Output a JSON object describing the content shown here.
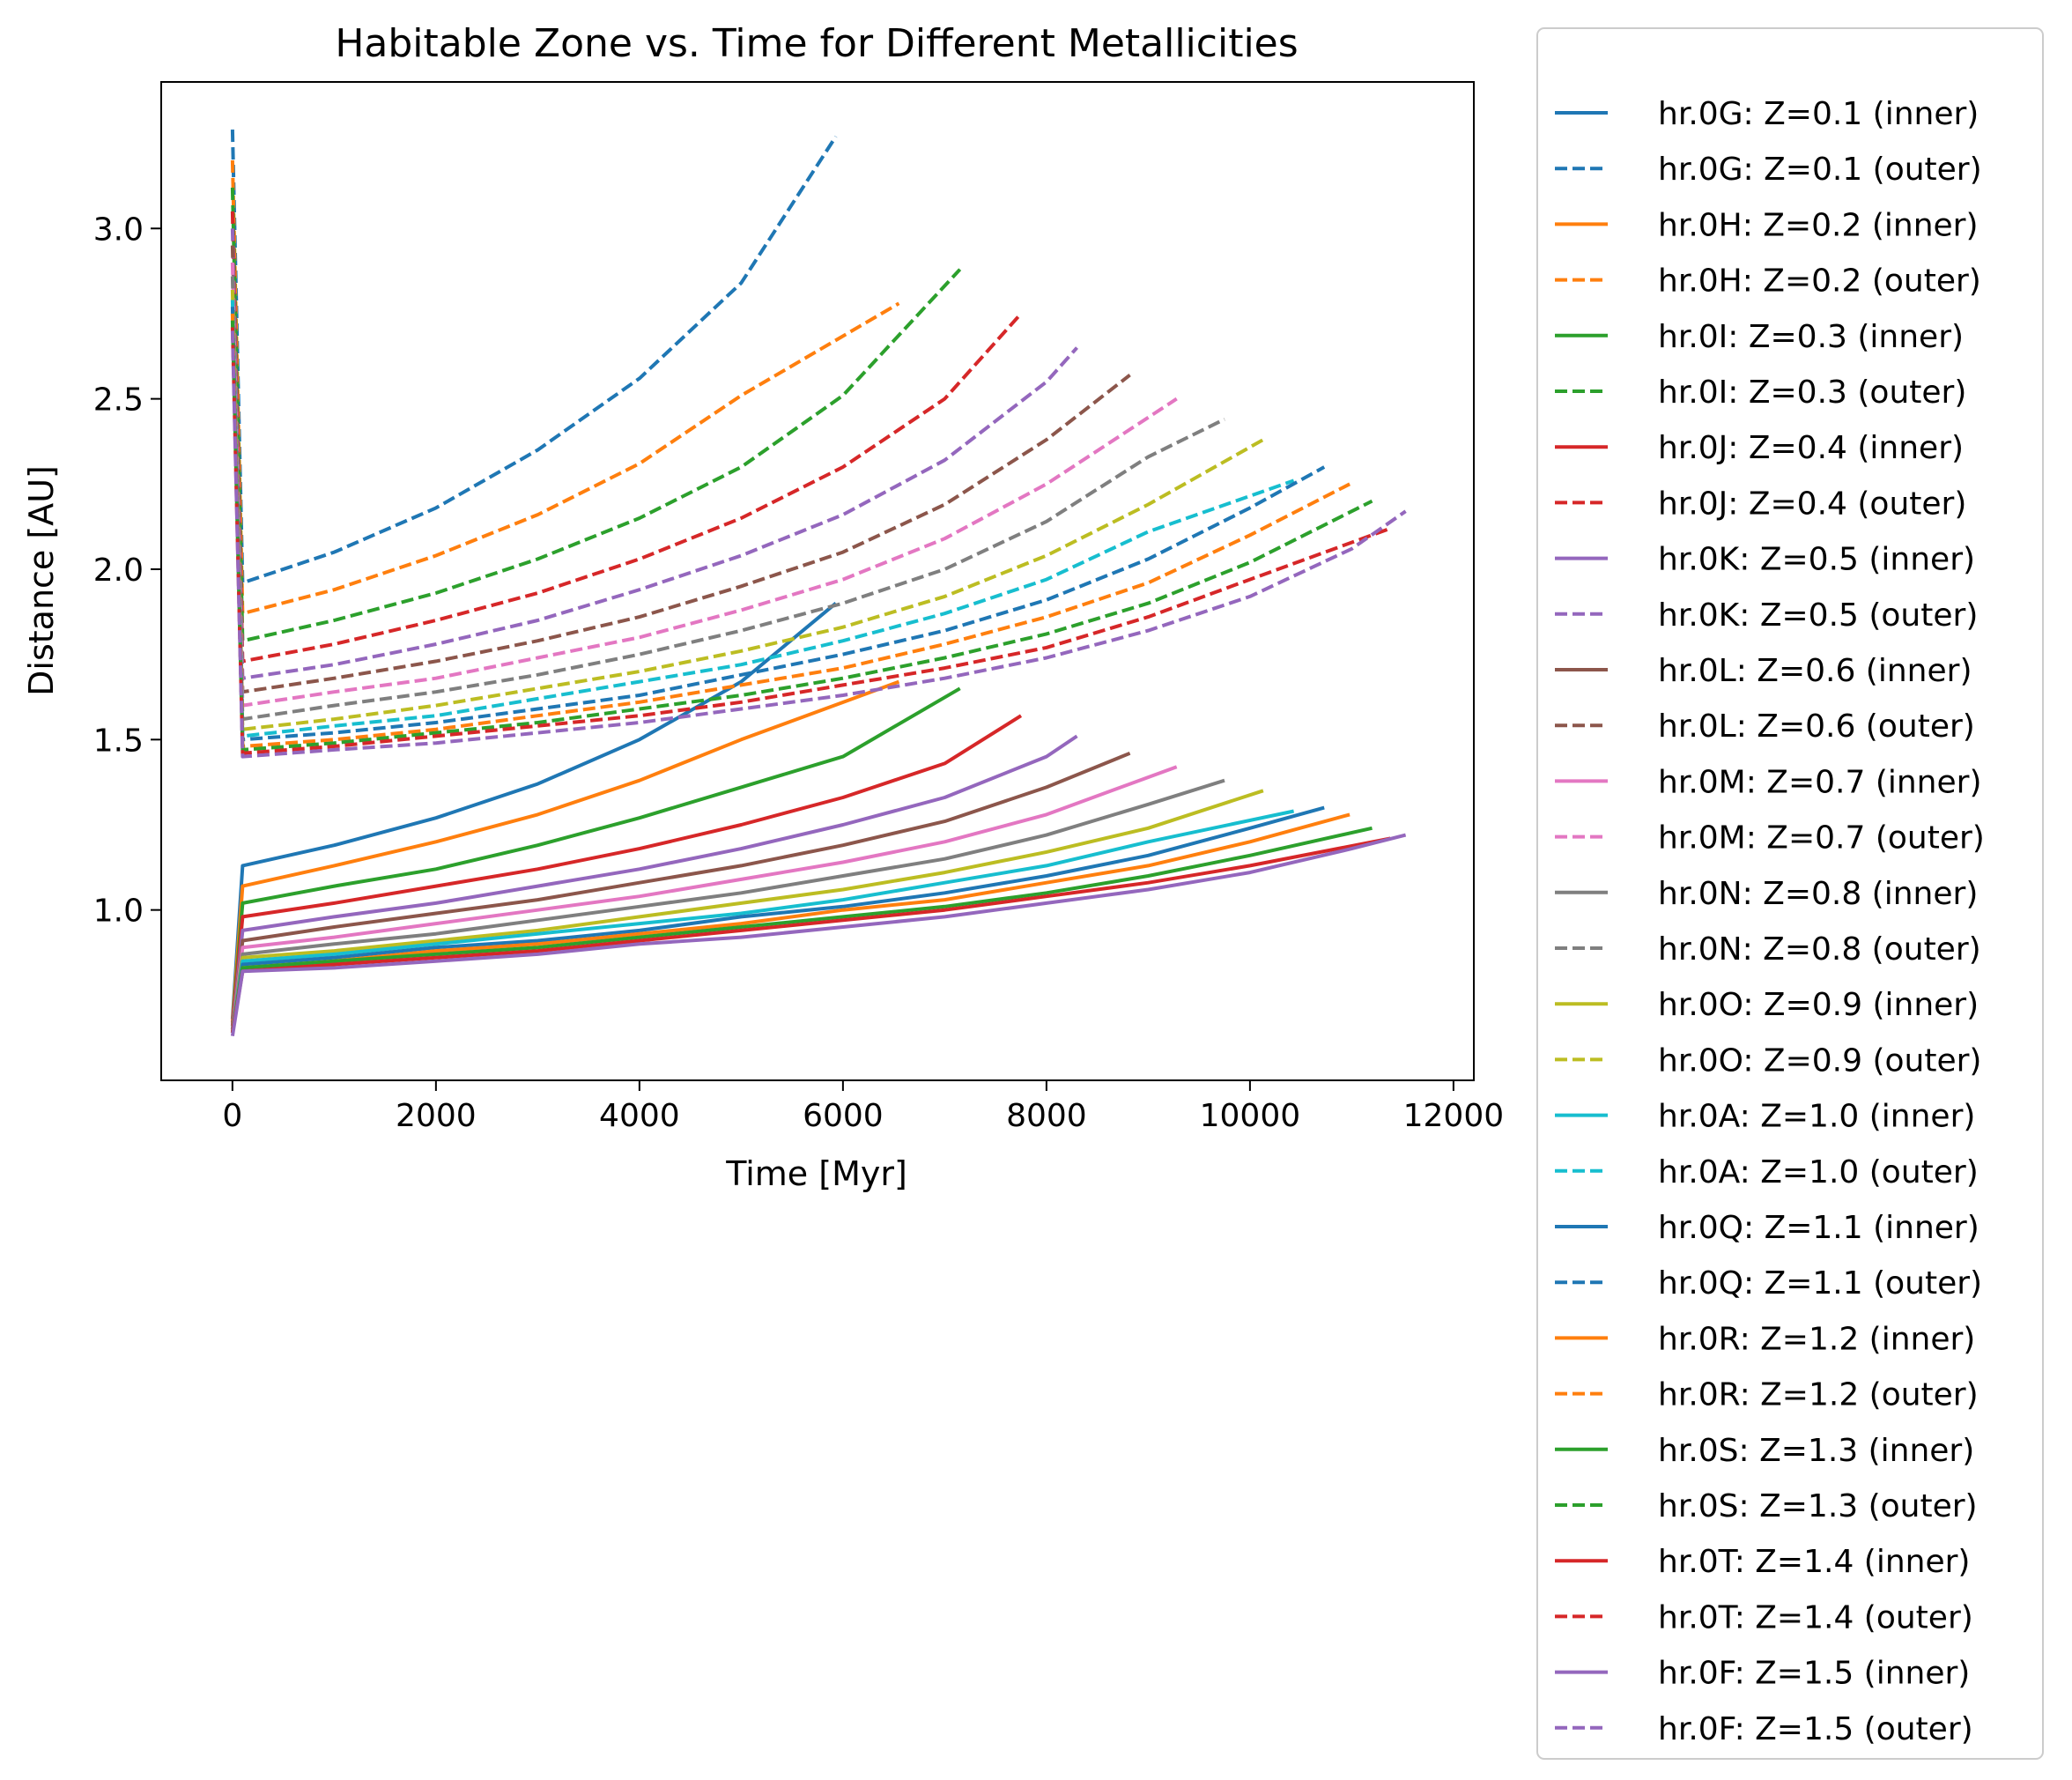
{
  "chart_data": {
    "type": "line",
    "title": "Habitable Zone vs. Time for Different Metallicities",
    "xlabel": "Time [Myr]",
    "ylabel": "Distance [AU]",
    "xlim": [
      -700,
      12200
    ],
    "ylim": [
      0.5,
      3.43
    ],
    "xticks": [
      0,
      2000,
      4000,
      6000,
      8000,
      10000,
      12000
    ],
    "xtick_labels": [
      "0",
      "2000",
      "4000",
      "6000",
      "8000",
      "10000",
      "12000"
    ],
    "yticks": [
      1.0,
      1.5,
      2.0,
      2.5,
      3.0
    ],
    "ytick_labels": [
      "1.0",
      "1.5",
      "2.0",
      "2.5",
      "3.0"
    ],
    "grid": false,
    "legend_position": "outside-right",
    "x_sample": [
      0,
      100,
      1000,
      2000,
      3000,
      4000,
      5000,
      6000,
      7000,
      8000,
      9000,
      10000,
      11000,
      11500
    ],
    "series": [
      {
        "name": "hr.0G: Z=0.1 (inner)",
        "color": "#1f77b4",
        "style": "solid",
        "end_x": 5930,
        "values": [
          0.68,
          1.13,
          1.19,
          1.27,
          1.37,
          1.5,
          1.67,
          1.9
        ]
      },
      {
        "name": "hr.0G: Z=0.1 (outer)",
        "color": "#1f77b4",
        "style": "dashed",
        "end_x": 5930,
        "values": [
          3.29,
          1.96,
          2.05,
          2.18,
          2.35,
          2.56,
          2.84,
          3.27
        ]
      },
      {
        "name": "hr.0H: Z=0.2 (inner)",
        "color": "#ff7f0e",
        "style": "solid",
        "end_x": 6550,
        "values": [
          0.67,
          1.07,
          1.13,
          1.2,
          1.28,
          1.38,
          1.5,
          1.67
        ]
      },
      {
        "name": "hr.0H: Z=0.2 (outer)",
        "color": "#ff7f0e",
        "style": "dashed",
        "end_x": 6550,
        "values": [
          3.2,
          1.87,
          1.94,
          2.04,
          2.16,
          2.31,
          2.51,
          2.78
        ]
      },
      {
        "name": "hr.0I: Z=0.3 (inner)",
        "color": "#2ca02c",
        "style": "solid",
        "end_x": 7150,
        "values": [
          0.66,
          1.02,
          1.07,
          1.12,
          1.19,
          1.27,
          1.36,
          1.45,
          1.65
        ]
      },
      {
        "name": "hr.0I: Z=0.3 (outer)",
        "color": "#2ca02c",
        "style": "dashed",
        "end_x": 7150,
        "values": [
          3.12,
          1.79,
          1.85,
          1.93,
          2.03,
          2.15,
          2.3,
          2.51,
          2.88
        ]
      },
      {
        "name": "hr.0J: Z=0.4 (inner)",
        "color": "#d62728",
        "style": "solid",
        "end_x": 7750,
        "values": [
          0.66,
          0.98,
          1.02,
          1.07,
          1.12,
          1.18,
          1.25,
          1.33,
          1.43,
          1.57
        ]
      },
      {
        "name": "hr.0J: Z=0.4 (outer)",
        "color": "#d62728",
        "style": "dashed",
        "end_x": 7750,
        "values": [
          3.05,
          1.73,
          1.78,
          1.85,
          1.93,
          2.03,
          2.15,
          2.3,
          2.5,
          2.75
        ]
      },
      {
        "name": "hr.0K: Z=0.5 (inner)",
        "color": "#9467bd",
        "style": "solid",
        "end_x": 8300,
        "values": [
          0.65,
          0.94,
          0.98,
          1.02,
          1.07,
          1.12,
          1.18,
          1.25,
          1.33,
          1.45,
          1.51
        ]
      },
      {
        "name": "hr.0K: Z=0.5 (outer)",
        "color": "#9467bd",
        "style": "dashed",
        "end_x": 8300,
        "values": [
          3.0,
          1.68,
          1.72,
          1.78,
          1.85,
          1.94,
          2.04,
          2.16,
          2.32,
          2.55,
          2.65
        ]
      },
      {
        "name": "hr.0L: Z=0.6 (inner)",
        "color": "#8c564b",
        "style": "solid",
        "end_x": 8820,
        "values": [
          0.65,
          0.91,
          0.95,
          0.99,
          1.03,
          1.08,
          1.13,
          1.19,
          1.26,
          1.36,
          1.46
        ]
      },
      {
        "name": "hr.0L: Z=0.6 (outer)",
        "color": "#8c564b",
        "style": "dashed",
        "end_x": 8820,
        "values": [
          2.95,
          1.64,
          1.68,
          1.73,
          1.79,
          1.86,
          1.95,
          2.05,
          2.19,
          2.38,
          2.57
        ]
      },
      {
        "name": "hr.0M: Z=0.7 (inner)",
        "color": "#e377c2",
        "style": "solid",
        "end_x": 9280,
        "values": [
          0.65,
          0.89,
          0.92,
          0.96,
          1.0,
          1.04,
          1.09,
          1.14,
          1.2,
          1.28,
          1.42
        ]
      },
      {
        "name": "hr.0M: Z=0.7 (outer)",
        "color": "#e377c2",
        "style": "dashed",
        "end_x": 9280,
        "values": [
          2.9,
          1.6,
          1.64,
          1.68,
          1.74,
          1.8,
          1.88,
          1.97,
          2.09,
          2.25,
          2.5
        ]
      },
      {
        "name": "hr.0N: Z=0.8 (inner)",
        "color": "#7f7f7f",
        "style": "solid",
        "end_x": 9750,
        "values": [
          0.65,
          0.87,
          0.9,
          0.93,
          0.97,
          1.01,
          1.05,
          1.1,
          1.15,
          1.22,
          1.31,
          1.38
        ]
      },
      {
        "name": "hr.0N: Z=0.8 (outer)",
        "color": "#7f7f7f",
        "style": "dashed",
        "end_x": 9750,
        "values": [
          2.86,
          1.56,
          1.6,
          1.64,
          1.69,
          1.75,
          1.82,
          1.9,
          2.0,
          2.14,
          2.33,
          2.44
        ]
      },
      {
        "name": "hr.0O: Z=0.9 (inner)",
        "color": "#bcbd22",
        "style": "solid",
        "end_x": 10130,
        "values": [
          0.64,
          0.86,
          0.88,
          0.91,
          0.94,
          0.98,
          1.02,
          1.06,
          1.11,
          1.17,
          1.24,
          1.35
        ]
      },
      {
        "name": "hr.0O: Z=0.9 (outer)",
        "color": "#bcbd22",
        "style": "dashed",
        "end_x": 10130,
        "values": [
          2.82,
          1.53,
          1.56,
          1.6,
          1.65,
          1.7,
          1.76,
          1.83,
          1.92,
          2.04,
          2.19,
          2.38
        ]
      },
      {
        "name": "hr.0A: Z=1.0 (inner)",
        "color": "#17becf",
        "style": "solid",
        "end_x": 10430,
        "values": [
          0.64,
          0.85,
          0.87,
          0.9,
          0.93,
          0.96,
          0.99,
          1.03,
          1.08,
          1.13,
          1.2,
          1.29
        ]
      },
      {
        "name": "hr.0A: Z=1.0 (outer)",
        "color": "#17becf",
        "style": "dashed",
        "end_x": 10430,
        "values": [
          2.79,
          1.51,
          1.54,
          1.57,
          1.62,
          1.67,
          1.72,
          1.79,
          1.87,
          1.97,
          2.11,
          2.26
        ]
      },
      {
        "name": "hr.0Q: Z=1.1 (inner)",
        "color": "#1f77b4",
        "style": "solid",
        "end_x": 10730,
        "values": [
          0.64,
          0.84,
          0.86,
          0.89,
          0.91,
          0.94,
          0.98,
          1.01,
          1.05,
          1.1,
          1.16,
          1.24,
          1.3
        ]
      },
      {
        "name": "hr.0Q: Z=1.1 (outer)",
        "color": "#1f77b4",
        "style": "dashed",
        "end_x": 10730,
        "values": [
          2.77,
          1.5,
          1.52,
          1.55,
          1.59,
          1.63,
          1.69,
          1.75,
          1.82,
          1.91,
          2.03,
          2.18,
          2.3
        ]
      },
      {
        "name": "hr.0R: Z=1.2 (inner)",
        "color": "#ff7f0e",
        "style": "solid",
        "end_x": 10980,
        "values": [
          0.64,
          0.83,
          0.85,
          0.88,
          0.9,
          0.93,
          0.96,
          1.0,
          1.03,
          1.08,
          1.13,
          1.2,
          1.28
        ]
      },
      {
        "name": "hr.0R: Z=1.2 (outer)",
        "color": "#ff7f0e",
        "style": "dashed",
        "end_x": 10980,
        "values": [
          2.75,
          1.48,
          1.5,
          1.53,
          1.57,
          1.61,
          1.66,
          1.71,
          1.78,
          1.86,
          1.96,
          2.1,
          2.25
        ]
      },
      {
        "name": "hr.0S: Z=1.3 (inner)",
        "color": "#2ca02c",
        "style": "solid",
        "end_x": 11200,
        "values": [
          0.64,
          0.83,
          0.85,
          0.87,
          0.89,
          0.92,
          0.95,
          0.98,
          1.01,
          1.05,
          1.1,
          1.16,
          1.24
        ]
      },
      {
        "name": "hr.0S: Z=1.3 (outer)",
        "color": "#2ca02c",
        "style": "dashed",
        "end_x": 11200,
        "values": [
          2.73,
          1.47,
          1.49,
          1.52,
          1.55,
          1.59,
          1.63,
          1.68,
          1.74,
          1.81,
          1.9,
          2.02,
          2.2
        ]
      },
      {
        "name": "hr.0T: Z=1.4 (inner)",
        "color": "#d62728",
        "style": "solid",
        "end_x": 11380,
        "values": [
          0.64,
          0.82,
          0.84,
          0.86,
          0.88,
          0.91,
          0.94,
          0.97,
          1.0,
          1.04,
          1.08,
          1.13,
          1.21
        ]
      },
      {
        "name": "hr.0T: Z=1.4 (outer)",
        "color": "#d62728",
        "style": "dashed",
        "end_x": 11380,
        "values": [
          2.71,
          1.46,
          1.48,
          1.51,
          1.54,
          1.57,
          1.61,
          1.66,
          1.71,
          1.77,
          1.86,
          1.97,
          2.12
        ]
      },
      {
        "name": "hr.0F: Z=1.5 (inner)",
        "color": "#9467bd",
        "style": "solid",
        "end_x": 11530,
        "values": [
          0.63,
          0.82,
          0.83,
          0.85,
          0.87,
          0.9,
          0.92,
          0.95,
          0.98,
          1.02,
          1.06,
          1.11,
          1.18,
          1.22
        ]
      },
      {
        "name": "hr.0F: Z=1.5 (outer)",
        "color": "#9467bd",
        "style": "dashed",
        "end_x": 11530,
        "values": [
          2.7,
          1.45,
          1.47,
          1.49,
          1.52,
          1.55,
          1.59,
          1.63,
          1.68,
          1.74,
          1.82,
          1.92,
          2.06,
          2.17
        ]
      }
    ]
  }
}
